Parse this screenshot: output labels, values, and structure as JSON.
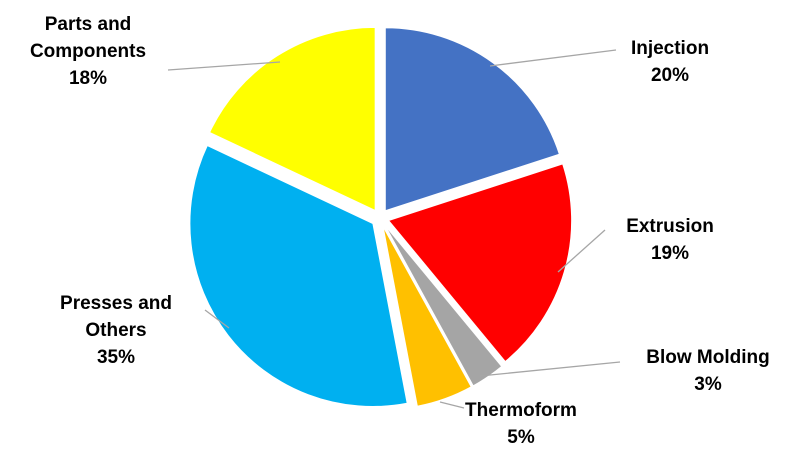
{
  "chart_data": {
    "type": "pie",
    "title": "",
    "categories": [
      "Injection",
      "Extrusion",
      "Blow Molding",
      "Thermoform",
      "Presses and Others",
      "Parts and Components"
    ],
    "label_lines": [
      [
        "Injection"
      ],
      [
        "Extrusion"
      ],
      [
        "Blow Molding"
      ],
      [
        "Thermoform"
      ],
      [
        "Presses and",
        "Others"
      ],
      [
        "Parts and",
        "Components"
      ]
    ],
    "values": [
      20,
      19,
      3,
      5,
      35,
      18
    ],
    "percent_labels": [
      "20%",
      "19%",
      "3%",
      "5%",
      "35%",
      "18%"
    ],
    "colors": [
      "#4472C4",
      "#FF0000",
      "#A5A5A5",
      "#FFC000",
      "#00B0F0",
      "#FFFF00"
    ],
    "exploded": true,
    "start_angle": "12 o'clock",
    "direction": "clockwise",
    "legend": "none"
  }
}
